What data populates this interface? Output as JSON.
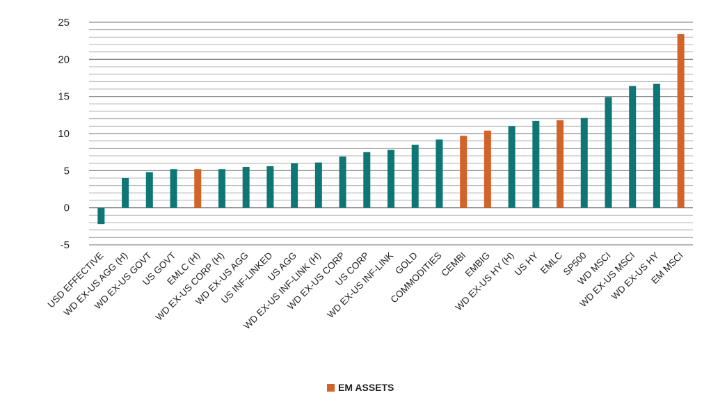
{
  "chart_data": {
    "type": "bar",
    "title": "",
    "xlabel": "",
    "ylabel": "",
    "ylim": [
      -5,
      25
    ],
    "yticks": [
      -5,
      0,
      5,
      10,
      15,
      20,
      25
    ],
    "minor_grid_step": 1,
    "grid": true,
    "legend_position": "bottom-center",
    "categories": [
      "USD EFFECTIVE",
      "WD EX-US AGG (H)",
      "WD EX-US GOVT",
      "US GOVT",
      "EMLC (H)",
      "WD EX-US CORP (H)",
      "WD EX-US AGG",
      "US INF-LINKED",
      "US AGG",
      "WD EX-US INF-LINK (H)",
      "WD EX-US CORP",
      "US CORP",
      "WD EX-US INF-LINK",
      "GOLD",
      "COMMODITIES",
      "CEMBI",
      "EMBIG",
      "WD EX-US HY (H)",
      "US HY",
      "EMLC",
      "SP500",
      "WD MSCI",
      "WD EX-US MSCI",
      "WD EX-US HY",
      "EM MSCI"
    ],
    "values": [
      -2.2,
      4.0,
      4.8,
      5.2,
      5.2,
      5.2,
      5.5,
      5.6,
      6.0,
      6.1,
      6.9,
      7.5,
      7.8,
      8.5,
      9.2,
      9.7,
      10.4,
      11.0,
      11.7,
      11.8,
      12.1,
      14.9,
      16.4,
      16.7,
      23.4
    ],
    "em_assets": [
      false,
      false,
      false,
      false,
      true,
      false,
      false,
      false,
      false,
      false,
      false,
      false,
      false,
      false,
      false,
      true,
      true,
      false,
      false,
      true,
      false,
      false,
      false,
      false,
      true
    ],
    "colors": {
      "default": "#0e7675",
      "em_assets": "#d2642a"
    },
    "legend": [
      {
        "label": "EM ASSETS",
        "color": "#d2642a"
      }
    ]
  }
}
